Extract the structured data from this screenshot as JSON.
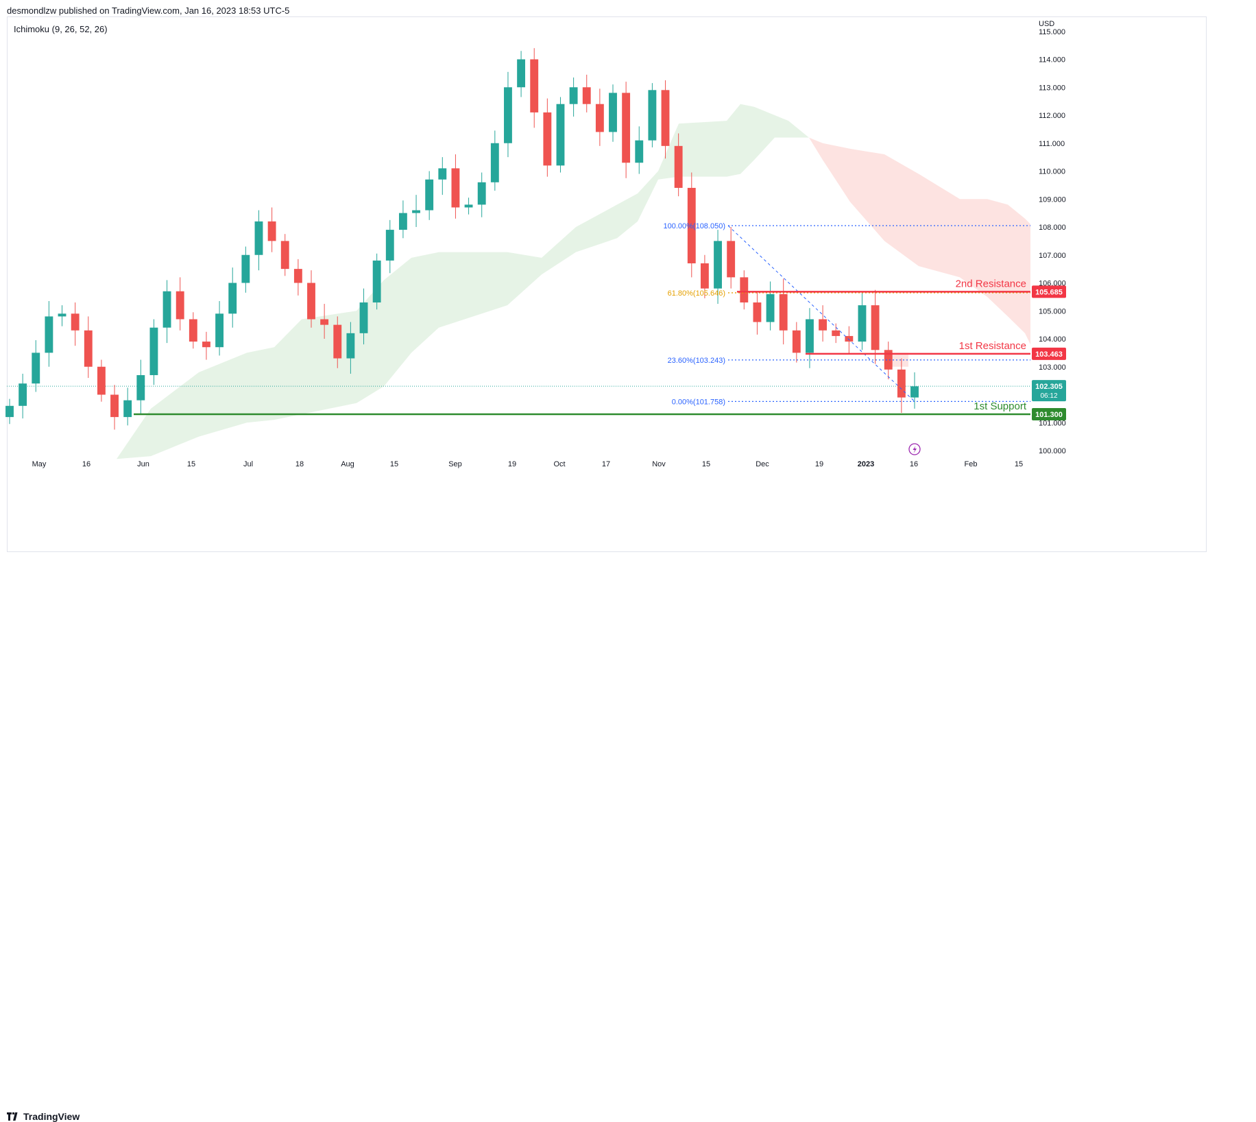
{
  "header": {
    "publish_text": "desmondlzw published on TradingView.com, Jan 16, 2023 18:53 UTC-5",
    "indicator": "Ichimoku (9, 26, 52, 26)"
  },
  "footer": {
    "brand": "TradingView"
  },
  "colors": {
    "up": "#26a69a",
    "down": "#ef5350",
    "cloud_bull": "#e6f3e6",
    "cloud_bear": "#fde3e1",
    "support": "#2e8b2e",
    "resistance": "#f23645",
    "fib": "#2962ff",
    "fib_61": "#e5a000",
    "text": "#131722"
  },
  "chart_data": {
    "type": "candlestick",
    "title": "",
    "y_axis": {
      "unit": "USD",
      "min": 99.5,
      "max": 115.5,
      "ticks": [
        "100.000",
        "101.000",
        "102.000",
        "103.000",
        "104.000",
        "105.000",
        "106.000",
        "107.000",
        "108.000",
        "109.000",
        "110.000",
        "111.000",
        "112.000",
        "113.000",
        "114.000",
        "115.000"
      ]
    },
    "x_axis": {
      "ticks": [
        "May",
        "16",
        "Jun",
        "15",
        "Jul",
        "18",
        "Aug",
        "15",
        "Sep",
        "19",
        "Oct",
        "17",
        "Nov",
        "15",
        "Dec",
        "19",
        "2023",
        "16",
        "Feb",
        "15"
      ]
    },
    "current_price": {
      "value": "102.305",
      "countdown": "06:12"
    },
    "levels": [
      {
        "label": "2nd Resistance",
        "value": "105.685",
        "role": "resistance"
      },
      {
        "label": "1st Resistance",
        "value": "103.463",
        "role": "resistance"
      },
      {
        "label": "1st Support",
        "value": "101.300",
        "role": "support"
      }
    ],
    "fibonacci": [
      {
        "label": "100.00%(108.050)",
        "value": 108.05
      },
      {
        "label": "61.80%(105.646)",
        "value": 105.646
      },
      {
        "label": "23.60%(103.243)",
        "value": 103.243
      },
      {
        "label": "0.00%(101.758)",
        "value": 101.758
      }
    ],
    "series": [
      {
        "type": "candles",
        "approx_closes": [
          101.6,
          102.4,
          103.5,
          104.8,
          104.9,
          104.3,
          103.0,
          102.0,
          101.2,
          101.8,
          102.7,
          104.4,
          105.7,
          104.7,
          103.9,
          103.7,
          104.9,
          106.0,
          107.0,
          108.2,
          107.5,
          106.5,
          106.0,
          104.7,
          104.5,
          103.3,
          104.2,
          105.3,
          106.8,
          107.9,
          108.5,
          108.6,
          109.7,
          110.1,
          108.7,
          108.8,
          109.6,
          111.0,
          113.0,
          114.0,
          112.1,
          110.2,
          112.4,
          113.0,
          112.4,
          111.4,
          112.8,
          110.3,
          111.1,
          112.9,
          110.9,
          109.4,
          106.7,
          105.8,
          107.5,
          106.2,
          105.3,
          104.6,
          105.6,
          104.3,
          103.5,
          104.7,
          104.3,
          104.1,
          103.9,
          105.2,
          103.6,
          102.9,
          101.9,
          102.3
        ]
      }
    ]
  }
}
